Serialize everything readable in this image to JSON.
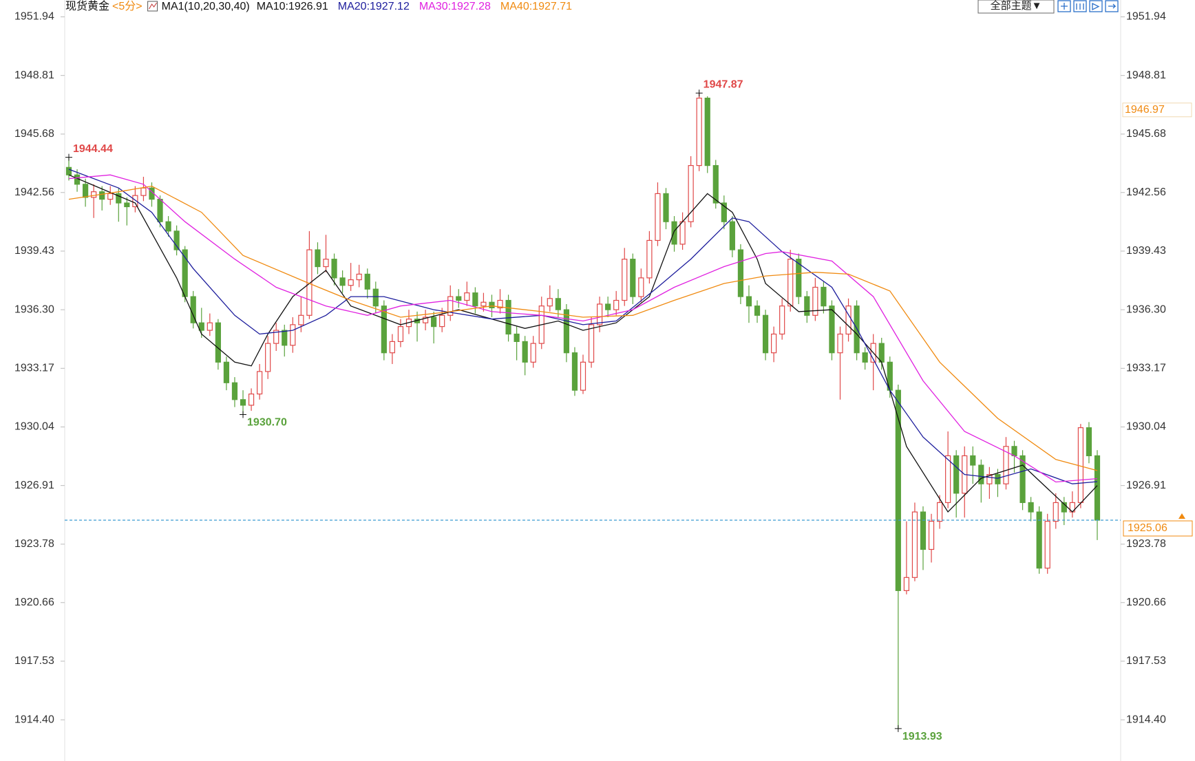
{
  "chart_data": {
    "type": "candlestick",
    "title": "现货黄金",
    "period": "<5分>",
    "indicator": "MA1(10,20,30,40)",
    "theme_button": "全部主题▼",
    "ylim": [
      1912.2,
      1952.84
    ],
    "yticks": [
      1951.94,
      1948.81,
      1945.68,
      1942.56,
      1939.43,
      {
        "value": 1936.3,
        "label": "1936.30"
      },
      1933.17,
      1930.04,
      1926.91,
      1923.78,
      1920.66,
      1917.53,
      {
        "value": 1914.4,
        "label": "1914.40"
      }
    ],
    "up_color": "#e04848",
    "down_color": "#5aa23c",
    "candles": [
      [
        1943.9,
        1944.44,
        1943.2,
        1943.5
      ],
      [
        1943.5,
        1943.8,
        1942.6,
        1943.0
      ],
      [
        1943.0,
        1943.3,
        1941.8,
        1942.3
      ],
      [
        1942.3,
        1943.0,
        1941.2,
        1942.6
      ],
      [
        1942.6,
        1942.9,
        1941.6,
        1942.2
      ],
      [
        1942.2,
        1942.9,
        1941.9,
        1942.5
      ],
      [
        1942.5,
        1942.8,
        1941.0,
        1942.0
      ],
      [
        1942.0,
        1942.3,
        1940.8,
        1941.8
      ],
      [
        1941.8,
        1942.9,
        1941.5,
        1942.4
      ],
      [
        1942.4,
        1943.4,
        1942.1,
        1942.8
      ],
      [
        1942.8,
        1943.1,
        1941.8,
        1942.2
      ],
      [
        1942.2,
        1942.4,
        1940.7,
        1941.0
      ],
      [
        1941.0,
        1941.3,
        1940.2,
        1940.5
      ],
      [
        1940.5,
        1940.8,
        1939.2,
        1939.5
      ],
      [
        1939.5,
        1939.7,
        1936.7,
        1937.0
      ],
      [
        1937.0,
        1937.3,
        1935.3,
        1935.6
      ],
      [
        1935.6,
        1936.4,
        1934.8,
        1935.2
      ],
      [
        1935.2,
        1936.1,
        1934.9,
        1935.6
      ],
      [
        1935.6,
        1935.8,
        1933.1,
        1933.5
      ],
      [
        1933.5,
        1933.8,
        1932.0,
        1932.4
      ],
      [
        1932.4,
        1932.7,
        1931.1,
        1931.5
      ],
      [
        1931.5,
        1932.0,
        1930.7,
        1931.2
      ],
      [
        1931.2,
        1932.1,
        1930.9,
        1931.8
      ],
      [
        1931.8,
        1933.4,
        1931.5,
        1933.0
      ],
      [
        1933.0,
        1934.9,
        1932.6,
        1934.5
      ],
      [
        1934.5,
        1935.6,
        1934.1,
        1935.2
      ],
      [
        1935.2,
        1935.5,
        1933.8,
        1934.4
      ],
      [
        1934.4,
        1935.9,
        1934.0,
        1935.5
      ],
      [
        1935.5,
        1937.0,
        1935.1,
        1936.0
      ],
      [
        1936.0,
        1940.5,
        1935.8,
        1939.5
      ],
      [
        1939.5,
        1939.9,
        1938.2,
        1938.6
      ],
      [
        1938.6,
        1940.3,
        1938.3,
        1939.0
      ],
      [
        1939.0,
        1939.3,
        1937.6,
        1938.0
      ],
      [
        1938.0,
        1938.4,
        1937.2,
        1937.6
      ],
      [
        1937.6,
        1938.8,
        1937.3,
        1937.9
      ],
      [
        1937.9,
        1938.7,
        1937.5,
        1938.2
      ],
      [
        1938.2,
        1938.5,
        1936.9,
        1937.4
      ],
      [
        1937.4,
        1937.8,
        1936.1,
        1936.5
      ],
      [
        1936.5,
        1936.8,
        1933.6,
        1934.0
      ],
      [
        1934.0,
        1935.0,
        1933.4,
        1934.6
      ],
      [
        1934.6,
        1935.8,
        1934.3,
        1935.4
      ],
      [
        1935.4,
        1936.3,
        1935.0,
        1935.8
      ],
      [
        1935.8,
        1936.2,
        1934.6,
        1935.6
      ],
      [
        1935.6,
        1936.3,
        1935.2,
        1935.9
      ],
      [
        1935.9,
        1936.2,
        1934.5,
        1935.4
      ],
      [
        1935.4,
        1936.4,
        1935.1,
        1936.0
      ],
      [
        1936.0,
        1937.6,
        1935.7,
        1937.0
      ],
      [
        1937.0,
        1937.4,
        1936.4,
        1936.8
      ],
      [
        1936.8,
        1937.8,
        1936.5,
        1937.2
      ],
      [
        1937.2,
        1937.5,
        1936.1,
        1936.5
      ],
      [
        1936.5,
        1937.2,
        1936.2,
        1936.7
      ],
      [
        1936.7,
        1937.1,
        1935.9,
        1936.4
      ],
      [
        1936.4,
        1937.4,
        1936.1,
        1936.8
      ],
      [
        1936.8,
        1937.1,
        1934.6,
        1935.0
      ],
      [
        1935.0,
        1935.4,
        1933.6,
        1934.6
      ],
      [
        1934.6,
        1934.9,
        1932.8,
        1933.5
      ],
      [
        1933.5,
        1934.9,
        1933.2,
        1934.5
      ],
      [
        1934.5,
        1937.0,
        1934.2,
        1936.5
      ],
      [
        1936.5,
        1937.6,
        1936.2,
        1936.9
      ],
      [
        1936.9,
        1937.4,
        1935.9,
        1936.3
      ],
      [
        1936.3,
        1936.6,
        1933.5,
        1934.0
      ],
      [
        1934.0,
        1934.3,
        1931.7,
        1932.0
      ],
      [
        1932.0,
        1933.9,
        1931.8,
        1933.5
      ],
      [
        1933.5,
        1935.9,
        1933.2,
        1935.5
      ],
      [
        1935.5,
        1937.0,
        1935.1,
        1936.6
      ],
      [
        1936.6,
        1937.0,
        1935.9,
        1936.3
      ],
      [
        1936.3,
        1937.3,
        1936.0,
        1936.8
      ],
      [
        1936.8,
        1939.6,
        1936.5,
        1939.0
      ],
      [
        1939.0,
        1939.3,
        1936.6,
        1937.0
      ],
      [
        1937.0,
        1938.5,
        1936.7,
        1938.0
      ],
      [
        1938.0,
        1940.5,
        1937.7,
        1940.0
      ],
      [
        1940.0,
        1943.1,
        1939.7,
        1942.5
      ],
      [
        1942.5,
        1942.8,
        1940.6,
        1941.0
      ],
      [
        1941.0,
        1941.3,
        1939.4,
        1939.8
      ],
      [
        1939.8,
        1941.5,
        1939.5,
        1941.0
      ],
      [
        1941.0,
        1944.5,
        1940.7,
        1944.0
      ],
      [
        1944.0,
        1947.87,
        1943.7,
        1947.6
      ],
      [
        1947.6,
        1947.7,
        1943.6,
        1944.0
      ],
      [
        1944.0,
        1944.3,
        1941.7,
        1942.0
      ],
      [
        1942.0,
        1942.4,
        1940.6,
        1941.0
      ],
      [
        1941.0,
        1941.3,
        1939.1,
        1939.5
      ],
      [
        1939.5,
        1939.8,
        1936.6,
        1937.0
      ],
      [
        1937.0,
        1937.6,
        1935.6,
        1936.5
      ],
      [
        1936.5,
        1936.8,
        1935.6,
        1936.0
      ],
      [
        1936.0,
        1936.3,
        1933.6,
        1934.0
      ],
      [
        1934.0,
        1935.4,
        1933.5,
        1935.0
      ],
      [
        1935.0,
        1936.9,
        1934.7,
        1936.5
      ],
      [
        1936.5,
        1939.5,
        1936.2,
        1939.0
      ],
      [
        1939.0,
        1939.3,
        1936.6,
        1937.0
      ],
      [
        1937.0,
        1937.3,
        1935.6,
        1936.0
      ],
      [
        1936.0,
        1938.0,
        1935.7,
        1937.5
      ],
      [
        1937.5,
        1937.8,
        1936.1,
        1936.5
      ],
      [
        1936.5,
        1936.8,
        1933.6,
        1934.0
      ],
      [
        1934.0,
        1935.4,
        1931.5,
        1935.0
      ],
      [
        1935.0,
        1936.9,
        1934.6,
        1936.5
      ],
      [
        1936.5,
        1936.8,
        1933.6,
        1934.0
      ],
      [
        1934.0,
        1934.3,
        1933.1,
        1933.5
      ],
      [
        1933.5,
        1935.0,
        1932.0,
        1934.5
      ],
      [
        1934.5,
        1934.8,
        1933.1,
        1933.5
      ],
      [
        1933.5,
        1933.8,
        1931.6,
        1932.0
      ],
      [
        1932.0,
        1932.3,
        1913.93,
        1921.3
      ],
      [
        1921.3,
        1925.0,
        1921.1,
        1922.0
      ],
      [
        1922.0,
        1926.0,
        1921.8,
        1925.5
      ],
      [
        1925.5,
        1925.8,
        1922.4,
        1923.5
      ],
      [
        1923.5,
        1925.4,
        1922.8,
        1925.0
      ],
      [
        1925.0,
        1926.4,
        1924.6,
        1926.0
      ],
      [
        1926.0,
        1929.8,
        1925.7,
        1928.5
      ],
      [
        1928.5,
        1928.8,
        1925.2,
        1926.5
      ],
      [
        1926.5,
        1929.0,
        1925.2,
        1928.5
      ],
      [
        1928.5,
        1929.0,
        1927.0,
        1928.0
      ],
      [
        1928.0,
        1928.3,
        1926.0,
        1927.0
      ],
      [
        1927.0,
        1927.9,
        1926.2,
        1927.5
      ],
      [
        1927.5,
        1927.8,
        1926.3,
        1927.0
      ],
      [
        1927.0,
        1929.5,
        1926.7,
        1929.0
      ],
      [
        1929.0,
        1929.3,
        1927.6,
        1928.5
      ],
      [
        1928.5,
        1928.8,
        1925.6,
        1926.0
      ],
      [
        1926.0,
        1926.3,
        1925.0,
        1925.5
      ],
      [
        1925.5,
        1925.8,
        1922.2,
        1922.5
      ],
      [
        1922.5,
        1925.4,
        1922.2,
        1925.0
      ],
      [
        1925.0,
        1926.5,
        1924.6,
        1926.0
      ],
      [
        1926.0,
        1926.3,
        1924.8,
        1925.5
      ],
      [
        1925.5,
        1926.6,
        1925.2,
        1926.0
      ],
      [
        1926.0,
        1930.2,
        1925.7,
        1930.0
      ],
      [
        1930.0,
        1930.3,
        1928.1,
        1928.5
      ],
      [
        1928.5,
        1928.8,
        1924.0,
        1925.06
      ]
    ],
    "series": [
      {
        "name": "MA10:1926.91",
        "color": "#111111",
        "x": [
          0,
          8,
          13,
          16,
          20,
          22,
          24,
          27,
          31,
          34,
          40,
          47,
          55,
          59,
          62,
          66,
          70,
          73,
          77,
          80,
          83,
          84,
          88,
          92,
          95,
          98,
          101,
          106,
          110,
          115,
          121,
          124
        ],
        "values": [
          1943.5,
          1942,
          1938,
          1935,
          1933.5,
          1933.3,
          1935,
          1937,
          1938.4,
          1936.5,
          1935.5,
          1936.3,
          1935.3,
          1935.7,
          1935.2,
          1935.6,
          1937,
          1940.5,
          1942.5,
          1941.5,
          1939,
          1937.7,
          1936.2,
          1936.3,
          1935,
          1933.5,
          1929,
          1925.5,
          1927.3,
          1928,
          1925.5,
          1926.91
        ]
      },
      {
        "name": "MA20:1927.12",
        "color": "#1c1c9c",
        "x": [
          0,
          6,
          10,
          15,
          20,
          23,
          27,
          31,
          34,
          38,
          44,
          51,
          57,
          62,
          66,
          71,
          75,
          80,
          82,
          86,
          92,
          95,
          99,
          103,
          108,
          112,
          116,
          121,
          124
        ],
        "values": [
          1943.8,
          1942.8,
          1941.5,
          1938.5,
          1936,
          1935,
          1935.2,
          1936,
          1937,
          1937,
          1936.3,
          1935.8,
          1936,
          1935.5,
          1935.7,
          1937.5,
          1939,
          1941.2,
          1941,
          1939.4,
          1937.5,
          1935.3,
          1932,
          1929.5,
          1927.5,
          1927.3,
          1927.8,
          1927,
          1927.12
        ]
      },
      {
        "name": "MA30:1927.28",
        "color": "#e020e0",
        "x": [
          0,
          5,
          9,
          14,
          20,
          25,
          31,
          36,
          40,
          46,
          51,
          57,
          62,
          68,
          73,
          79,
          84,
          86,
          92,
          97,
          103,
          108,
          114,
          119,
          124
        ],
        "values": [
          1943.3,
          1943.5,
          1943,
          1941,
          1939,
          1937.5,
          1936.5,
          1936,
          1936.5,
          1936.8,
          1936.2,
          1936,
          1935.7,
          1936.3,
          1937.5,
          1938.6,
          1939.3,
          1939.4,
          1938.9,
          1937,
          1932.5,
          1929.8,
          1928.5,
          1927.1,
          1927.28
        ]
      },
      {
        "name": "MA40:1927.71",
        "color": "#f08a10",
        "x": [
          0,
          6,
          10,
          16,
          21,
          29,
          34,
          40,
          46,
          51,
          57,
          62,
          68,
          73,
          79,
          84,
          90,
          94,
          99,
          105,
          112,
          119,
          124
        ],
        "values": [
          1942.2,
          1942.6,
          1942.9,
          1941.5,
          1939.2,
          1937.7,
          1936.8,
          1935.9,
          1936.2,
          1936.5,
          1936.2,
          1935.9,
          1936,
          1936.8,
          1937.7,
          1938.1,
          1938.3,
          1938.2,
          1937.3,
          1933.5,
          1930.5,
          1928.3,
          1927.71
        ]
      }
    ],
    "high_marks": [
      1944.44,
      1947.87
    ],
    "low_marks": [
      {
        "value": 1930.7,
        "label": "1930.70"
      },
      1913.93
    ],
    "marker_price": 1946.97,
    "last_price": 1925.06
  }
}
